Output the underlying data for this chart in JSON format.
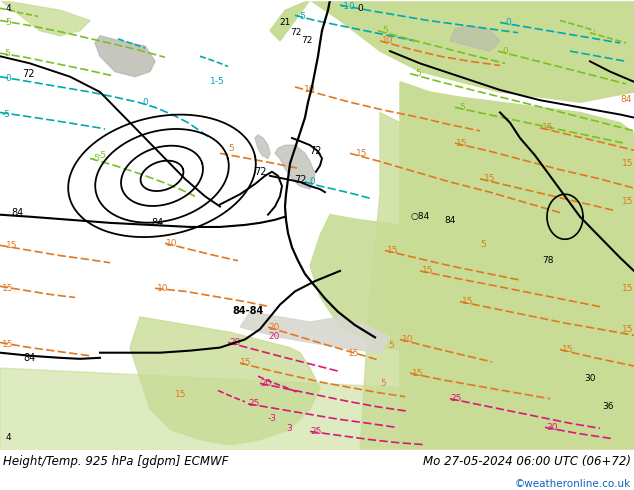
{
  "title_left": "Height/Temp. 925 hPa [gdpm] ECMWF",
  "title_right": "Mo 27-05-2024 06:00 UTC (06+72)",
  "credit": "©weatheronline.co.uk",
  "bg_color": "#e8e8e0",
  "ocean_color": "#d8d8d0",
  "land_green": "#c8dc96",
  "land_gray": "#b8b8b0",
  "contour_black": "#000000",
  "contour_orange": "#e07820",
  "contour_cyan": "#00a8b0",
  "contour_lime": "#78c020",
  "contour_magenta": "#d81878",
  "contour_red": "#d82020",
  "bottom_bar_color": "#ffffff",
  "text_color": "#000000",
  "credit_color": "#1060c0",
  "figwidth": 6.34,
  "figheight": 4.9,
  "dpi": 100,
  "label_fontsize": 8.5,
  "credit_fontsize": 7.5
}
